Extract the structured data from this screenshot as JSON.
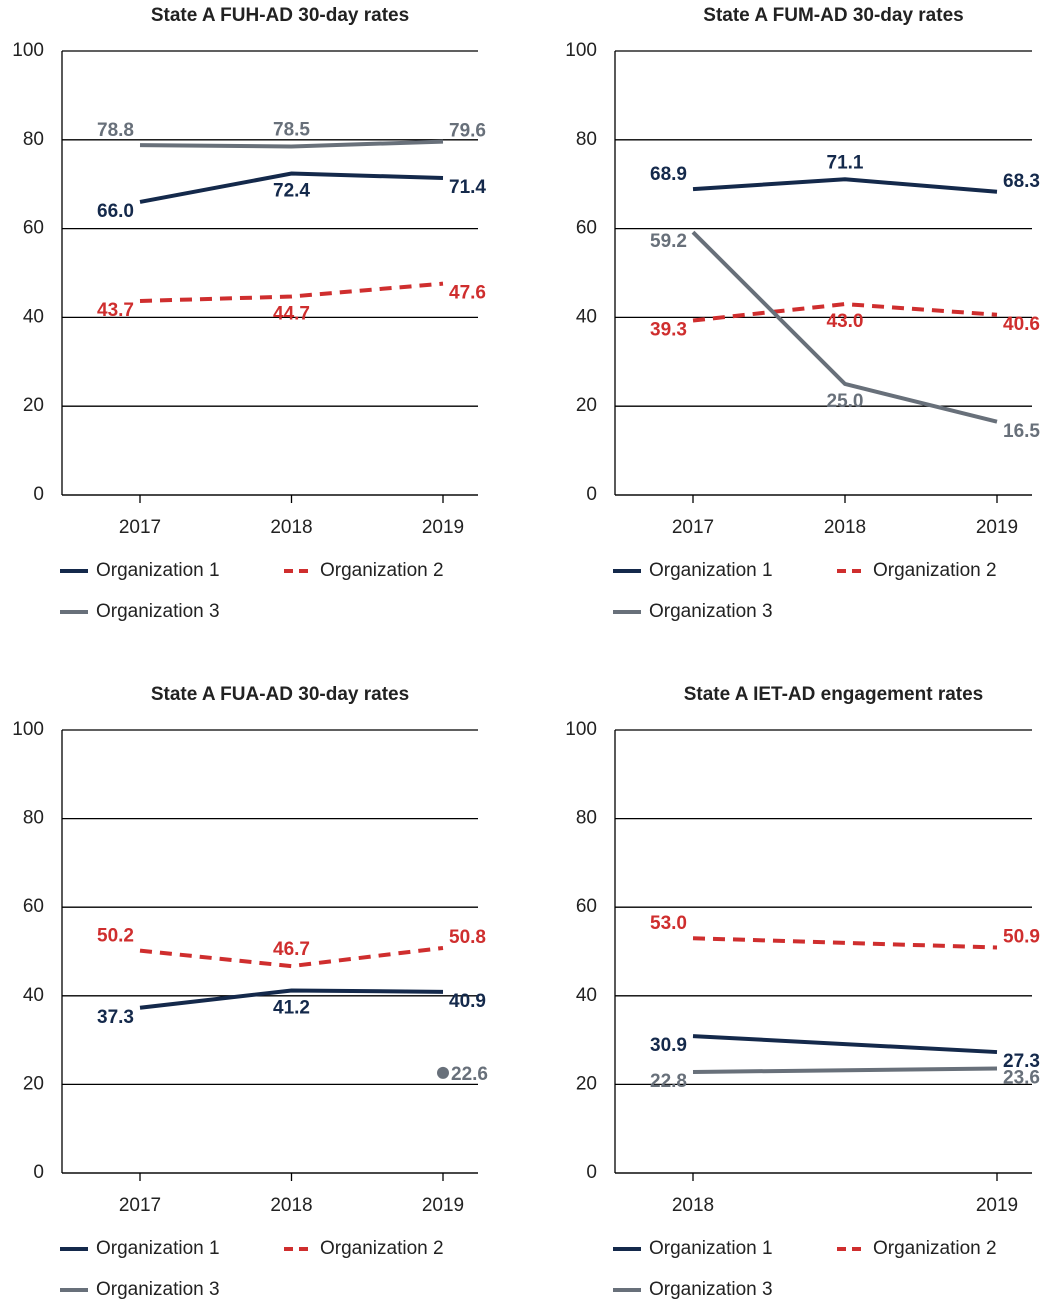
{
  "chart_data": [
    {
      "type": "line",
      "title": "State A FUH-AD 30-day rates",
      "categories": [
        "2017",
        "2018",
        "2019"
      ],
      "ylim": [
        0,
        100
      ],
      "yticks": [
        0,
        20,
        40,
        60,
        80,
        100
      ],
      "grid": true,
      "series": [
        {
          "name": "Organization 1",
          "color": "#14294b",
          "line_style": "solid",
          "values": [
            66,
            72.4,
            71.4
          ],
          "value_labels": [
            "66.0",
            "72.4",
            "71.4"
          ]
        },
        {
          "name": "Organization 2",
          "color": "#cf2e2e",
          "line_style": "dashed",
          "values": [
            43.7,
            44.7,
            47.6
          ],
          "value_labels": [
            "43.7",
            "44.7",
            "47.6"
          ]
        },
        {
          "name": "Organization 3",
          "color": "#68707a",
          "line_style": "solid",
          "values": [
            78.8,
            78.5,
            79.6
          ],
          "value_labels": [
            "78.8",
            "78.5",
            "79.6"
          ]
        }
      ]
    },
    {
      "type": "line",
      "title": "State A FUM-AD 30-day rates",
      "categories": [
        "2017",
        "2018",
        "2019"
      ],
      "ylim": [
        0,
        100
      ],
      "yticks": [
        0,
        20,
        40,
        60,
        80,
        100
      ],
      "grid": true,
      "series": [
        {
          "name": "Organization 1",
          "color": "#14294b",
          "line_style": "solid",
          "values": [
            68.9,
            71.1,
            68.3
          ],
          "value_labels": [
            "68.9",
            "71.1",
            "68.3"
          ]
        },
        {
          "name": "Organization 2",
          "color": "#cf2e2e",
          "line_style": "dashed",
          "values": [
            39.3,
            43,
            40.6
          ],
          "value_labels": [
            "39.3",
            "43.0",
            "40.6"
          ]
        },
        {
          "name": "Organization 3",
          "color": "#68707a",
          "line_style": "solid",
          "values": [
            59.2,
            25,
            16.5
          ],
          "value_labels": [
            "59.2",
            "25.0",
            "16.5"
          ]
        }
      ]
    },
    {
      "type": "line",
      "title": "State A FUA-AD 30-day rates",
      "categories": [
        "2017",
        "2018",
        "2019"
      ],
      "ylim": [
        0,
        100
      ],
      "yticks": [
        0,
        20,
        40,
        60,
        80,
        100
      ],
      "grid": true,
      "series": [
        {
          "name": "Organization 1",
          "color": "#14294b",
          "line_style": "solid",
          "values": [
            37.3,
            41.2,
            40.9
          ],
          "value_labels": [
            "37.3",
            "41.2",
            "40.9"
          ]
        },
        {
          "name": "Organization 2",
          "color": "#cf2e2e",
          "line_style": "dashed",
          "values": [
            50.2,
            46.7,
            50.8
          ],
          "value_labels": [
            "50.2",
            "46.7",
            "50.8"
          ]
        },
        {
          "name": "Organization 3",
          "color": "#68707a",
          "line_style": "solid",
          "values": [
            null,
            null,
            22.6
          ],
          "value_labels": [
            null,
            null,
            "22.6"
          ]
        }
      ]
    },
    {
      "type": "line",
      "title": "State A IET-AD engagement rates",
      "categories": [
        "2018",
        "2019"
      ],
      "ylim": [
        0,
        100
      ],
      "yticks": [
        0,
        20,
        40,
        60,
        80,
        100
      ],
      "grid": true,
      "series": [
        {
          "name": "Organization 1",
          "color": "#14294b",
          "line_style": "solid",
          "values": [
            30.9,
            27.3
          ],
          "value_labels": [
            "30.9",
            "27.3"
          ]
        },
        {
          "name": "Organization 2",
          "color": "#cf2e2e",
          "line_style": "dashed",
          "values": [
            53,
            50.9
          ],
          "value_labels": [
            "53.0",
            "50.9"
          ]
        },
        {
          "name": "Organization 3",
          "color": "#68707a",
          "line_style": "solid",
          "values": [
            22.8,
            23.6
          ],
          "value_labels": [
            "22.8",
            "23.6"
          ]
        }
      ]
    }
  ]
}
